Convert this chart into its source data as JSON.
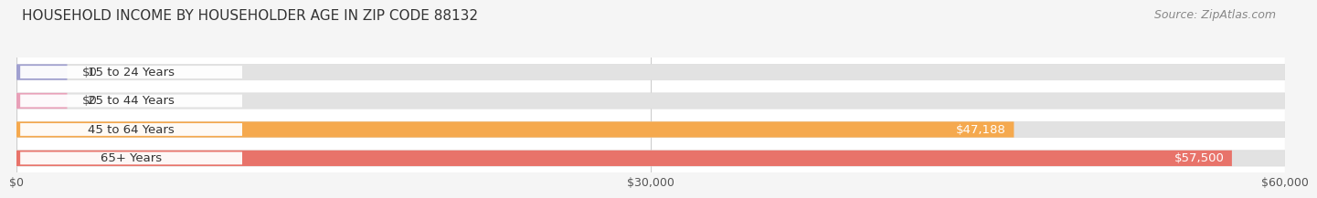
{
  "title": "HOUSEHOLD INCOME BY HOUSEHOLDER AGE IN ZIP CODE 88132",
  "source": "Source: ZipAtlas.com",
  "categories": [
    "15 to 24 Years",
    "25 to 44 Years",
    "45 to 64 Years",
    "65+ Years"
  ],
  "values": [
    0,
    0,
    47188,
    57500
  ],
  "bar_colors": [
    "#a0a0d0",
    "#e8a0b8",
    "#f5a94e",
    "#e8736a"
  ],
  "value_labels": [
    "$0",
    "$0",
    "$47,188",
    "$57,500"
  ],
  "value_label_colors": [
    "#444444",
    "#444444",
    "#ffffff",
    "#ffffff"
  ],
  "xlim": [
    0,
    60000
  ],
  "xticks": [
    0,
    30000,
    60000
  ],
  "xticklabels": [
    "$0",
    "$30,000",
    "$60,000"
  ],
  "background_color": "#f5f5f5",
  "bar_bg_color": "#e2e2e2",
  "title_fontsize": 11,
  "source_fontsize": 9,
  "label_fontsize": 9.5,
  "tick_fontsize": 9,
  "fig_width": 14.06,
  "fig_height": 2.33
}
